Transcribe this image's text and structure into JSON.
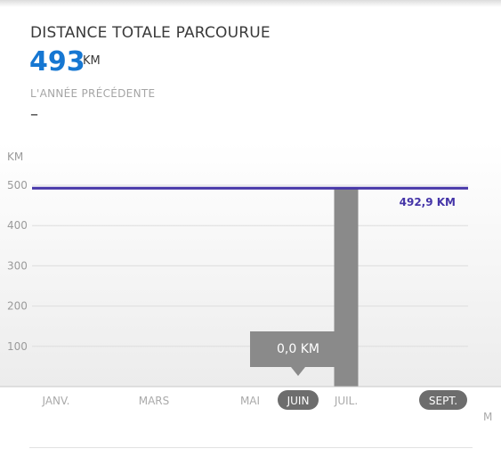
{
  "metric": {
    "title": "DISTANCE TOTALE PARCOURUE",
    "value": "493",
    "unit": "KM",
    "previous_label": "L'ANNÉE PRÉCÉDENTE",
    "previous_value": "–"
  },
  "colors": {
    "accent_blue": "#1677d2",
    "goal_line": "#4535a8",
    "bar": "#8a8a8a",
    "tooltip": "#8a8a8a",
    "month_pill": "#6d6d6d"
  },
  "chart_data": {
    "type": "bar",
    "ylabel": "KM",
    "ylim": [
      0,
      500
    ],
    "y_ticks": [
      100,
      200,
      300,
      400,
      500
    ],
    "categories": [
      "JANV.",
      "MARS",
      "MAI",
      "JUIN",
      "JUIL.",
      "SEPT."
    ],
    "highlighted_categories": [
      "JUIN",
      "SEPT."
    ],
    "bars": [
      {
        "category": "JUIN",
        "value": 0.0
      },
      {
        "category": "JUIL.",
        "value": 492.9
      }
    ],
    "cumulative_line": {
      "value": 492.9,
      "label": "492,9 KM"
    },
    "tooltip": {
      "category": "JUIN",
      "text": "0,0 KM"
    },
    "edge_label": "M",
    "grid": true
  }
}
